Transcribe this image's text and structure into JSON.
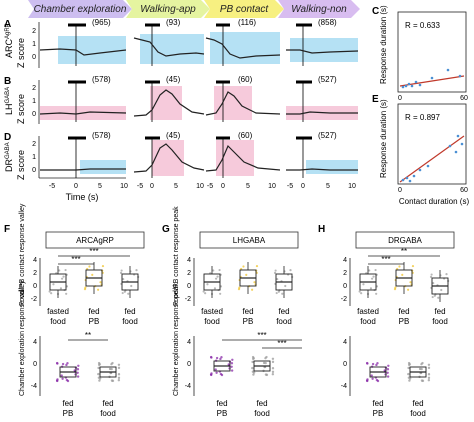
{
  "figure": {
    "conditions": [
      {
        "label": "Chamber exploration",
        "color": "#cdbef0"
      },
      {
        "label": "Walking-app",
        "color": "#e5f4a0"
      },
      {
        "label": "PB contact",
        "color": "#f7f081"
      },
      {
        "label": "Walking-non",
        "color": "#d8bdf0"
      }
    ],
    "panel_letters": [
      "A",
      "B",
      "C",
      "D",
      "E",
      "F",
      "G",
      "H"
    ],
    "trace_rows": [
      {
        "cell_label": "ARC",
        "cell_sup": "AgRP",
        "counts": [
          "(965)",
          "(93)",
          "(116)",
          "(858)"
        ]
      },
      {
        "cell_label": "LH",
        "cell_sup": "GABA",
        "counts": [
          "(578)",
          "(45)",
          "(60)",
          "(527)"
        ]
      },
      {
        "cell_label": "DR",
        "cell_sup": "GABA",
        "counts": [
          "(578)",
          "(45)",
          "(60)",
          "(527)"
        ]
      }
    ],
    "trace_y_label": "Z score",
    "trace_y_ticks": [
      "2",
      "1",
      "0"
    ],
    "trace_x_ticks": [
      "-5",
      "0",
      "5",
      "10"
    ],
    "trace_x_label": "Time (s)",
    "corr": {
      "y_label": "Response duration (s)",
      "x_ticks": [
        "0",
        "60"
      ],
      "y_ticks": [
        "0",
        "60"
      ],
      "x_label": "Contact duration (s)",
      "c_r": "R = 0.633",
      "e_r": "R = 0.897"
    },
    "box": {
      "F_title": "ARCAgRP",
      "G_title": "LHGABA",
      "H_title": "DRGABA",
      "top_y_labels": [
        "Food/PB contact response valley",
        "Food/PB contact response peak",
        ""
      ],
      "bottom_y_labels": [
        "Chamber exploration response valley",
        "Chamber exploration response peak",
        ""
      ],
      "top_categories": [
        [
          "fasted",
          "food"
        ],
        [
          "fed",
          "PB"
        ],
        [
          "fed",
          "food"
        ]
      ],
      "bottom_categories": [
        [
          "fed",
          "PB"
        ],
        [
          "fed",
          "food"
        ]
      ],
      "top_y_ticks": [
        "4",
        "2",
        "0",
        "-2"
      ],
      "bottom_y_ticks": [
        "4",
        "0",
        "-4"
      ],
      "sig": [
        "***",
        "**"
      ]
    }
  },
  "colors": {
    "blue_shade": "#a8dcf2",
    "pink_shade": "#f3b8cf",
    "gold": "#f0c020",
    "purple": "#8a2ca8",
    "grey": "#9a9a9a",
    "fit_line": "#c0392b"
  }
}
